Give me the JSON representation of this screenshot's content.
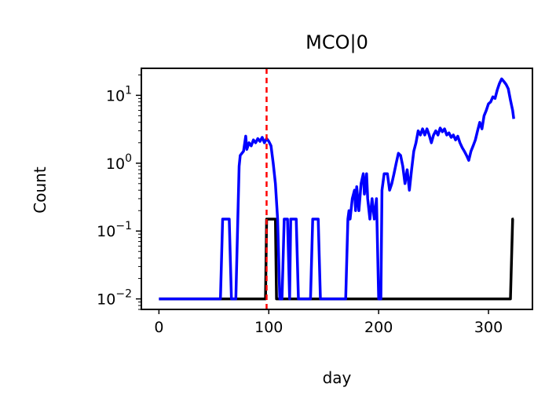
{
  "chart_data": {
    "type": "line",
    "title": "MCO|0",
    "xlabel": "day",
    "ylabel": "Count",
    "xscale": "linear",
    "yscale": "log",
    "xlim": [
      -16,
      340
    ],
    "ylim": [
      0.007,
      25
    ],
    "xticks": [
      0,
      100,
      200,
      300
    ],
    "xtick_labels": [
      "0",
      "100",
      "200",
      "300"
    ],
    "yticks": [
      0.01,
      0.1,
      1,
      10
    ],
    "ytick_labels": [
      {
        "base": "10",
        "exp": "−2"
      },
      {
        "base": "10",
        "exp": "−1"
      },
      {
        "base": "10",
        "exp": "0"
      },
      {
        "base": "10",
        "exp": "1"
      }
    ],
    "grid": false,
    "vline": {
      "x": 98,
      "color": "#ff0000",
      "style": "dashed"
    },
    "series": [
      {
        "color": "#000000",
        "points": [
          [
            0,
            0.01
          ],
          [
            97,
            0.01
          ],
          [
            98,
            0.15
          ],
          [
            106,
            0.15
          ],
          [
            107,
            0.01
          ],
          [
            320,
            0.01
          ],
          [
            322,
            0.15
          ],
          [
            323,
            0.15
          ]
        ]
      },
      {
        "color": "#0000ff",
        "points": [
          [
            0,
            0.01
          ],
          [
            56,
            0.01
          ],
          [
            58,
            0.15
          ],
          [
            64,
            0.15
          ],
          [
            66,
            0.01
          ],
          [
            70,
            0.01
          ],
          [
            73,
            0.9
          ],
          [
            74,
            1.3
          ],
          [
            77,
            1.5
          ],
          [
            79,
            2.5
          ],
          [
            80,
            1.6
          ],
          [
            82,
            2.0
          ],
          [
            84,
            1.8
          ],
          [
            86,
            2.2
          ],
          [
            88,
            2.0
          ],
          [
            90,
            2.3
          ],
          [
            92,
            2.1
          ],
          [
            94,
            2.4
          ],
          [
            96,
            2.0
          ],
          [
            98,
            2.3
          ],
          [
            100,
            2.1
          ],
          [
            102,
            1.8
          ],
          [
            104,
            1.0
          ],
          [
            106,
            0.5
          ],
          [
            108,
            0.15
          ],
          [
            110,
            0.01
          ],
          [
            112,
            0.01
          ],
          [
            114,
            0.15
          ],
          [
            117,
            0.15
          ],
          [
            119,
            0.01
          ],
          [
            120,
            0.15
          ],
          [
            125,
            0.15
          ],
          [
            127,
            0.01
          ],
          [
            138,
            0.01
          ],
          [
            140,
            0.15
          ],
          [
            145,
            0.15
          ],
          [
            147,
            0.01
          ],
          [
            170,
            0.01
          ],
          [
            172,
            0.15
          ],
          [
            173,
            0.2
          ],
          [
            174,
            0.15
          ],
          [
            176,
            0.3
          ],
          [
            178,
            0.4
          ],
          [
            179,
            0.2
          ],
          [
            180,
            0.45
          ],
          [
            182,
            0.2
          ],
          [
            184,
            0.5
          ],
          [
            186,
            0.7
          ],
          [
            187,
            0.35
          ],
          [
            189,
            0.7
          ],
          [
            190,
            0.3
          ],
          [
            192,
            0.15
          ],
          [
            194,
            0.3
          ],
          [
            196,
            0.15
          ],
          [
            198,
            0.3
          ],
          [
            200,
            0.01
          ],
          [
            202,
            0.01
          ],
          [
            203,
            0.4
          ],
          [
            205,
            0.7
          ],
          [
            208,
            0.7
          ],
          [
            210,
            0.4
          ],
          [
            212,
            0.5
          ],
          [
            214,
            0.7
          ],
          [
            216,
            1.0
          ],
          [
            218,
            1.4
          ],
          [
            220,
            1.3
          ],
          [
            222,
            0.9
          ],
          [
            224,
            0.5
          ],
          [
            226,
            0.8
          ],
          [
            228,
            0.4
          ],
          [
            230,
            0.8
          ],
          [
            232,
            1.5
          ],
          [
            234,
            2.0
          ],
          [
            236,
            3.0
          ],
          [
            238,
            2.6
          ],
          [
            240,
            3.2
          ],
          [
            242,
            2.6
          ],
          [
            244,
            3.2
          ],
          [
            246,
            2.6
          ],
          [
            248,
            2.0
          ],
          [
            250,
            2.6
          ],
          [
            252,
            3.0
          ],
          [
            254,
            2.6
          ],
          [
            256,
            3.3
          ],
          [
            258,
            2.9
          ],
          [
            260,
            3.2
          ],
          [
            262,
            2.6
          ],
          [
            264,
            2.8
          ],
          [
            266,
            2.4
          ],
          [
            268,
            2.6
          ],
          [
            270,
            2.2
          ],
          [
            272,
            2.5
          ],
          [
            274,
            2.0
          ],
          [
            276,
            1.7
          ],
          [
            278,
            1.5
          ],
          [
            280,
            1.3
          ],
          [
            282,
            1.1
          ],
          [
            284,
            1.5
          ],
          [
            286,
            1.8
          ],
          [
            288,
            2.2
          ],
          [
            290,
            3.0
          ],
          [
            292,
            4.0
          ],
          [
            294,
            3.2
          ],
          [
            296,
            5.0
          ],
          [
            298,
            6.0
          ],
          [
            300,
            7.5
          ],
          [
            302,
            8.0
          ],
          [
            304,
            9.5
          ],
          [
            306,
            9.0
          ],
          [
            308,
            12.0
          ],
          [
            310,
            15.0
          ],
          [
            312,
            17.5
          ],
          [
            314,
            16.0
          ],
          [
            316,
            14.5
          ],
          [
            318,
            12.5
          ],
          [
            320,
            8.5
          ],
          [
            322,
            6.0
          ],
          [
            323,
            4.5
          ]
        ]
      }
    ]
  }
}
